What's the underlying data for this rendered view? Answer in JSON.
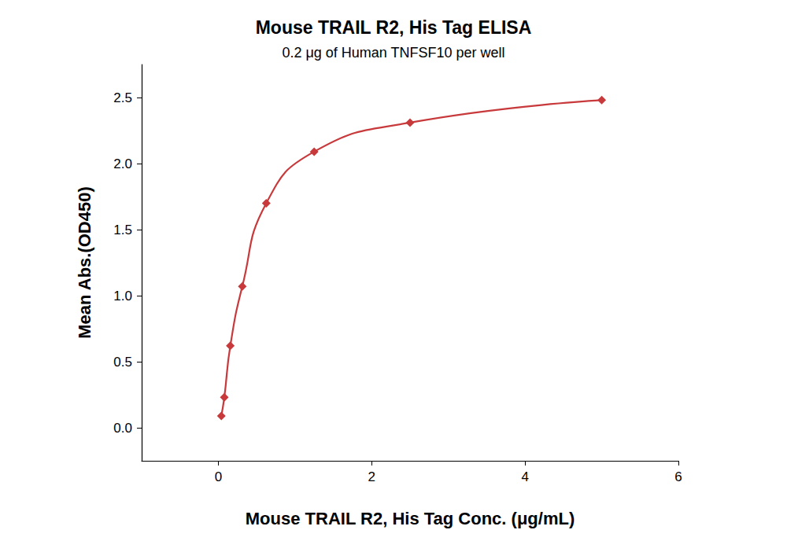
{
  "chart_data": {
    "type": "line",
    "title": "Mouse TRAIL R2, His Tag ELISA",
    "subtitle": "0.2 μg of Human TNFSF10 per well",
    "x_label": "Mouse TRAIL R2, His Tag Conc. (μg/mL)",
    "y_label": "Mean Abs.(OD450)",
    "x": [
      0.039,
      0.078,
      0.156,
      0.3125,
      0.625,
      1.25,
      2.5,
      5
    ],
    "values": [
      0.09,
      0.23,
      0.62,
      1.07,
      1.7,
      2.09,
      2.31,
      2.48
    ],
    "color": "#c8393b",
    "marker": "diamond",
    "line_style": "smooth",
    "xlim": [
      -1,
      6
    ],
    "xticks": [
      0,
      2,
      4,
      6
    ],
    "ylim": [
      -0.25,
      2.75
    ],
    "yticks": [
      {
        "value": 0,
        "label": "0.0"
      },
      0.5,
      {
        "value": 1,
        "label": "1.0"
      },
      1.5,
      {
        "value": 2,
        "label": "2.0"
      },
      2.5
    ],
    "grid": false
  }
}
